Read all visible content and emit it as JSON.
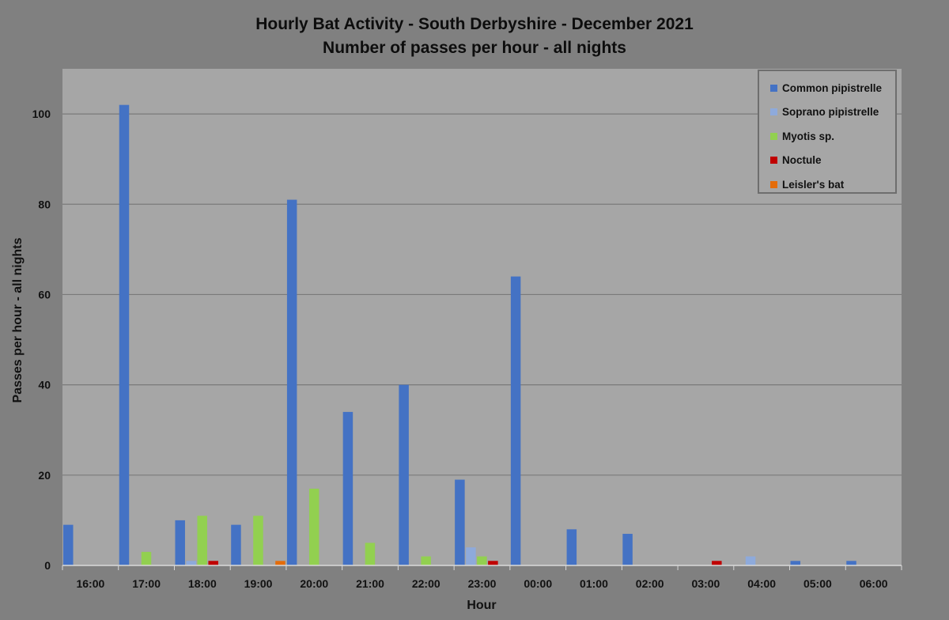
{
  "chart_data": {
    "type": "bar",
    "title": "Hourly Bat Activity - South Derbyshire - December 2021",
    "subtitle": "Number of passes per hour - all nights",
    "xlabel": "Hour",
    "ylabel": "Passes per hour - all nights",
    "ylim": [
      0,
      110
    ],
    "yticks": [
      0,
      20,
      40,
      60,
      80,
      100
    ],
    "grid": true,
    "legend_position": "top-right",
    "categories": [
      "16:00",
      "17:00",
      "18:00",
      "19:00",
      "20:00",
      "21:00",
      "22:00",
      "23:00",
      "00:00",
      "01:00",
      "02:00",
      "03:00",
      "04:00",
      "05:00",
      "06:00"
    ],
    "series": [
      {
        "name": "Common pipistrelle",
        "color": "#4472c4",
        "values": [
          9,
          102,
          10,
          9,
          81,
          34,
          40,
          19,
          64,
          8,
          7,
          0,
          0,
          1,
          1
        ]
      },
      {
        "name": "Soprano pipistrelle",
        "color": "#8eaadb",
        "values": [
          0,
          0,
          1,
          0,
          0,
          0,
          0,
          4,
          0,
          0,
          0,
          0,
          2,
          0,
          0
        ]
      },
      {
        "name": "Myotis sp.",
        "color": "#92d050",
        "values": [
          0,
          3,
          11,
          11,
          17,
          5,
          2,
          2,
          0,
          0,
          0,
          0,
          0,
          0,
          0
        ]
      },
      {
        "name": "Noctule",
        "color": "#c00000",
        "values": [
          0,
          0,
          1,
          0,
          0,
          0,
          0,
          1,
          0,
          0,
          0,
          1,
          0,
          0,
          0
        ]
      },
      {
        "name": "Leisler's bat",
        "color": "#e46c0a",
        "values": [
          0,
          0,
          0,
          1,
          0,
          0,
          0,
          0,
          0,
          0,
          0,
          0,
          0,
          0,
          0
        ]
      }
    ]
  }
}
